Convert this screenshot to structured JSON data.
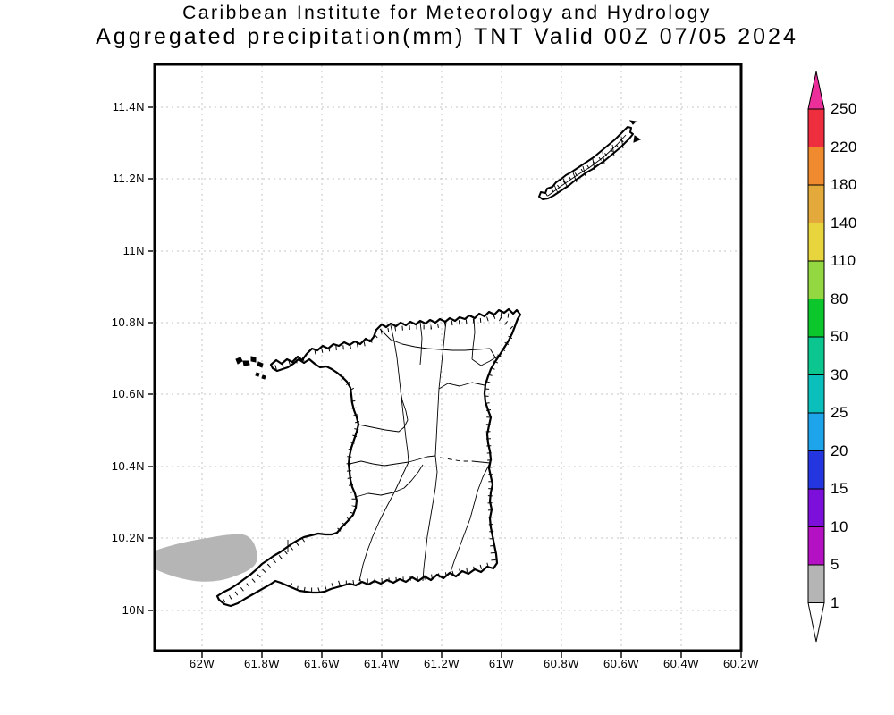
{
  "title": {
    "line1": "Caribbean Institute for Meteorology and Hydrology",
    "line2": "Aggregated precipitation(mm) TNT Valid 00Z 07/05 2024"
  },
  "axes": {
    "x_tick_labels": [
      "62W",
      "61.8W",
      "61.6W",
      "61.4W",
      "61.2W",
      "61W",
      "60.8W",
      "60.6W",
      "60.4W",
      "60.2W"
    ],
    "y_tick_labels": [
      "11.4N",
      "11.2N",
      "11N",
      "10.8N",
      "10.6N",
      "10.4N",
      "10.2N",
      "10N"
    ]
  },
  "colorbar": {
    "tick_labels": [
      "250",
      "220",
      "180",
      "140",
      "110",
      "80",
      "50",
      "30",
      "25",
      "20",
      "15",
      "10",
      "5",
      "1"
    ],
    "segment_colors_top_to_bottom": [
      "#ee2d3f",
      "#ef8b2e",
      "#e3a93a",
      "#e8d43d",
      "#93d841",
      "#0cc72c",
      "#0bc78f",
      "#0bbfbd",
      "#1ea4ea",
      "#2336e0",
      "#7c0fd9",
      "#b511c4",
      "#b5b5b5"
    ],
    "above_max_color": "#ec2e9a",
    "below_min_color": "#ffffff"
  },
  "map": {
    "islands": [
      "Trinidad",
      "Tobago"
    ],
    "precipitation_shading": {
      "color": "#b5b5b5",
      "value_range_mm": "1-5"
    },
    "line_color": "#000000",
    "grid_color": "#c4c4c4"
  }
}
